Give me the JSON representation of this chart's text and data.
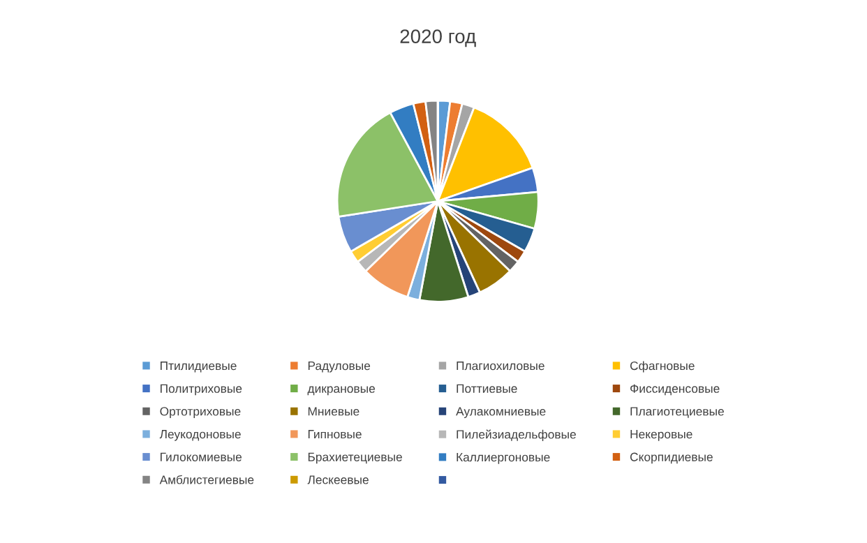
{
  "chart_data": {
    "type": "pie",
    "title": "2020 год",
    "categories": [
      "Птилидиевые",
      "Радуловые",
      "Плагиохиловые",
      "Сфагновые",
      "Политриховые",
      "дикрановые",
      "Поттиевые",
      "Фиссиденсовые",
      "Ортотриховые",
      "Мниевые",
      "Аулакомниевые",
      "Плагиотециевые",
      "Леукодоновые",
      "Гипновые",
      "Пилейзиадельфовые",
      "Некеровые",
      "Гилокомиевые",
      "Брахиетециевые",
      "Каллиергоновые",
      "Скорпидиевые",
      "Амблистегиевые",
      "Лескеевые",
      null
    ],
    "values": [
      1.96,
      1.96,
      1.96,
      13.73,
      3.92,
      5.88,
      3.92,
      1.96,
      1.96,
      5.88,
      1.96,
      7.84,
      1.96,
      7.84,
      1.96,
      1.96,
      5.88,
      19.62,
      3.92,
      1.96,
      1.96,
      0,
      0
    ],
    "colors": [
      "#5b9bd5",
      "#ed7d31",
      "#a5a5a5",
      "#ffc000",
      "#4472c4",
      "#70ad47",
      "#255e91",
      "#9e480e",
      "#636363",
      "#997300",
      "#264478",
      "#43682b",
      "#7cafdd",
      "#f1975a",
      "#b7b7b7",
      "#ffcd33",
      "#698ed0",
      "#8cc168",
      "#327dc2",
      "#d26012",
      "#848484",
      "#cc9a00",
      "#335aa1"
    ],
    "legend": "bottom"
  }
}
